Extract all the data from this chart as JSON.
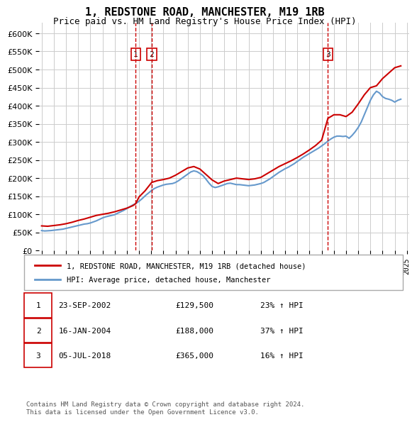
{
  "title": "1, REDSTONE ROAD, MANCHESTER, M19 1RB",
  "subtitle": "Price paid vs. HM Land Registry's House Price Index (HPI)",
  "legend_line1": "1, REDSTONE ROAD, MANCHESTER, M19 1RB (detached house)",
  "legend_line2": "HPI: Average price, detached house, Manchester",
  "footer": "Contains HM Land Registry data © Crown copyright and database right 2024.\nThis data is licensed under the Open Government Licence v3.0.",
  "transactions": [
    {
      "num": 1,
      "date": "23-SEP-2002",
      "price": "£129,500",
      "hpi": "23% ↑ HPI"
    },
    {
      "num": 2,
      "date": "16-JAN-2004",
      "price": "£188,000",
      "hpi": "37% ↑ HPI"
    },
    {
      "num": 3,
      "date": "05-JUL-2018",
      "price": "£365,000",
      "hpi": "16% ↑ HPI"
    }
  ],
  "vline_dates": [
    2002.73,
    2004.04,
    2018.51
  ],
  "ylim": [
    0,
    630000
  ],
  "yticks": [
    0,
    50000,
    100000,
    150000,
    200000,
    250000,
    300000,
    350000,
    400000,
    450000,
    500000,
    550000,
    600000
  ],
  "red_color": "#cc0000",
  "blue_color": "#6699cc",
  "grid_color": "#cccccc",
  "bg_color": "#ffffff",
  "hpi_data": {
    "years": [
      1995.0,
      1995.25,
      1995.5,
      1995.75,
      1996.0,
      1996.25,
      1996.5,
      1996.75,
      1997.0,
      1997.25,
      1997.5,
      1997.75,
      1998.0,
      1998.25,
      1998.5,
      1998.75,
      1999.0,
      1999.25,
      1999.5,
      1999.75,
      2000.0,
      2000.25,
      2000.5,
      2000.75,
      2001.0,
      2001.25,
      2001.5,
      2001.75,
      2002.0,
      2002.25,
      2002.5,
      2002.75,
      2003.0,
      2003.25,
      2003.5,
      2003.75,
      2004.0,
      2004.25,
      2004.5,
      2004.75,
      2005.0,
      2005.25,
      2005.5,
      2005.75,
      2006.0,
      2006.25,
      2006.5,
      2006.75,
      2007.0,
      2007.25,
      2007.5,
      2007.75,
      2008.0,
      2008.25,
      2008.5,
      2008.75,
      2009.0,
      2009.25,
      2009.5,
      2009.75,
      2010.0,
      2010.25,
      2010.5,
      2010.75,
      2011.0,
      2011.25,
      2011.5,
      2011.75,
      2012.0,
      2012.25,
      2012.5,
      2012.75,
      2013.0,
      2013.25,
      2013.5,
      2013.75,
      2014.0,
      2014.25,
      2014.5,
      2014.75,
      2015.0,
      2015.25,
      2015.5,
      2015.75,
      2016.0,
      2016.25,
      2016.5,
      2016.75,
      2017.0,
      2017.25,
      2017.5,
      2017.75,
      2018.0,
      2018.25,
      2018.5,
      2018.75,
      2019.0,
      2019.25,
      2019.5,
      2019.75,
      2020.0,
      2020.25,
      2020.5,
      2020.75,
      2021.0,
      2021.25,
      2021.5,
      2021.75,
      2022.0,
      2022.25,
      2022.5,
      2022.75,
      2023.0,
      2023.25,
      2023.5,
      2023.75,
      2024.0,
      2024.25,
      2024.5
    ],
    "values": [
      55000,
      54000,
      54500,
      55000,
      56000,
      57000,
      58000,
      59000,
      61000,
      63000,
      65000,
      67000,
      69000,
      71000,
      73000,
      74000,
      76000,
      79000,
      82000,
      86000,
      90000,
      93000,
      95000,
      97000,
      99000,
      103000,
      107000,
      111000,
      116000,
      121000,
      126000,
      130000,
      136000,
      143000,
      151000,
      158000,
      165000,
      171000,
      175000,
      178000,
      181000,
      183000,
      184000,
      185000,
      188000,
      193000,
      199000,
      205000,
      211000,
      217000,
      220000,
      218000,
      213000,
      207000,
      197000,
      186000,
      177000,
      174000,
      176000,
      179000,
      182000,
      185000,
      186000,
      184000,
      182000,
      182000,
      181000,
      180000,
      179000,
      180000,
      181000,
      183000,
      185000,
      188000,
      193000,
      198000,
      204000,
      210000,
      216000,
      221000,
      226000,
      230000,
      235000,
      240000,
      246000,
      252000,
      258000,
      263000,
      268000,
      273000,
      278000,
      283000,
      289000,
      295000,
      302000,
      308000,
      313000,
      316000,
      316000,
      315000,
      316000,
      310000,
      318000,
      328000,
      340000,
      355000,
      375000,
      395000,
      415000,
      430000,
      440000,
      435000,
      425000,
      420000,
      418000,
      415000,
      410000,
      415000,
      418000
    ]
  },
  "red_data": {
    "years": [
      1995.0,
      1995.5,
      1996.0,
      1996.5,
      1997.0,
      1997.5,
      1998.0,
      1998.5,
      1999.0,
      1999.5,
      2000.0,
      2000.5,
      2001.0,
      2001.5,
      2002.0,
      2002.5,
      2002.73,
      2003.0,
      2003.5,
      2004.04,
      2004.5,
      2005.0,
      2005.5,
      2006.0,
      2006.5,
      2007.0,
      2007.5,
      2008.0,
      2008.5,
      2009.0,
      2009.5,
      2010.0,
      2010.5,
      2011.0,
      2011.5,
      2012.0,
      2012.5,
      2013.0,
      2013.5,
      2014.0,
      2014.5,
      2015.0,
      2015.5,
      2016.0,
      2016.5,
      2017.0,
      2017.5,
      2018.0,
      2018.51,
      2019.0,
      2019.5,
      2020.0,
      2020.5,
      2021.0,
      2021.5,
      2022.0,
      2022.5,
      2023.0,
      2023.5,
      2024.0,
      2024.5
    ],
    "values": [
      68000,
      67000,
      69000,
      71000,
      74000,
      78000,
      83000,
      87000,
      92000,
      97000,
      100000,
      103000,
      107000,
      112000,
      117000,
      124000,
      129500,
      148000,
      165000,
      188000,
      193000,
      196000,
      200000,
      208000,
      218000,
      228000,
      232000,
      225000,
      210000,
      195000,
      185000,
      192000,
      196000,
      200000,
      198000,
      196000,
      198000,
      202000,
      212000,
      222000,
      232000,
      240000,
      248000,
      257000,
      267000,
      278000,
      290000,
      305000,
      365000,
      375000,
      375000,
      370000,
      382000,
      405000,
      430000,
      450000,
      455000,
      475000,
      490000,
      505000,
      510000
    ]
  }
}
